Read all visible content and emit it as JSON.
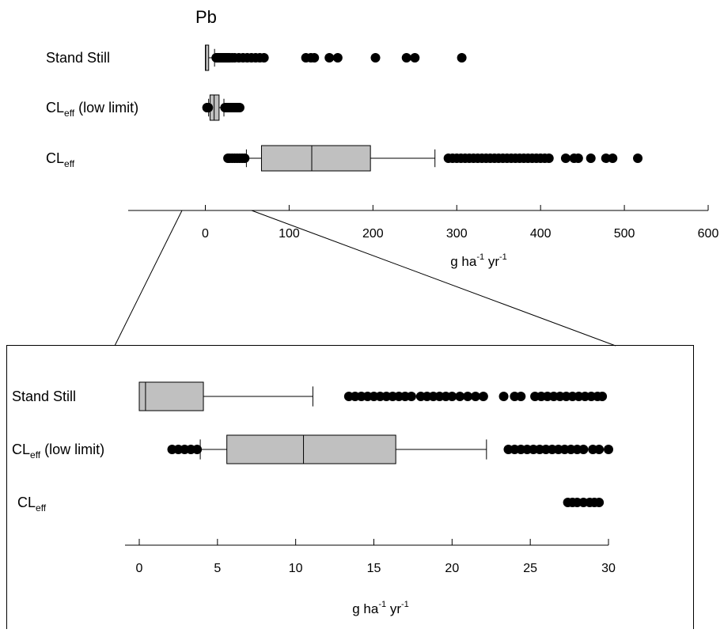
{
  "chart_data": [
    {
      "type": "boxplot",
      "title": "Pb",
      "xlabel": {
        "base": "g ha",
        "exp1": "-1",
        "mid": " yr",
        "exp2": "-1"
      },
      "xlim": [
        -90,
        600
      ],
      "xticks": [
        0,
        100,
        200,
        300,
        400,
        500,
        600
      ],
      "grid": false,
      "series": [
        {
          "label": {
            "base": "Stand Still",
            "sub": "",
            "suffix": ""
          },
          "box": {
            "q1": 0,
            "median": 0.4,
            "q3": 4,
            "whisker_low": 0,
            "whisker_high": 11
          },
          "outliers": [
            13,
            14,
            15,
            16,
            17,
            18,
            19,
            20,
            21,
            22,
            23,
            24,
            25,
            26,
            27,
            28,
            29,
            32,
            35,
            40,
            45,
            50,
            55,
            60,
            65,
            70,
            120,
            126,
            130,
            148,
            158,
            203,
            240,
            250,
            306
          ]
        },
        {
          "label": {
            "base": "CL",
            "sub": "eff",
            "suffix": " (low limit)"
          },
          "box": {
            "q1": 5.6,
            "median": 10.5,
            "q3": 16.4,
            "whisker_low": 3.9,
            "whisker_high": 22.2
          },
          "outliers": [
            2,
            2.5,
            3,
            3.5,
            23.5,
            25,
            27,
            29,
            31,
            33,
            35,
            37,
            39,
            41
          ]
        },
        {
          "label": {
            "base": "CL",
            "sub": "eff",
            "suffix": ""
          },
          "box": {
            "q1": 67,
            "median": 127,
            "q3": 197,
            "whisker_low": 49,
            "whisker_high": 274
          },
          "outliers": [
            27,
            29,
            32,
            35,
            38,
            41,
            44,
            47,
            290,
            295,
            300,
            305,
            310,
            315,
            320,
            325,
            330,
            335,
            340,
            345,
            350,
            355,
            360,
            365,
            370,
            375,
            380,
            385,
            390,
            395,
            400,
            405,
            410,
            430,
            440,
            445,
            460,
            478,
            486,
            516
          ]
        }
      ]
    },
    {
      "type": "boxplot",
      "title": "",
      "xlabel": {
        "base": "g ha",
        "exp1": "-1",
        "mid": " yr",
        "exp2": "-1"
      },
      "xlim": [
        -1,
        30
      ],
      "xticks": [
        0,
        5,
        10,
        15,
        20,
        25,
        30
      ],
      "grid": false,
      "series": [
        {
          "label": {
            "base": "Stand Still",
            "sub": "",
            "suffix": ""
          },
          "box": {
            "q1": 0,
            "median": 0.4,
            "q3": 4.1,
            "whisker_low": 0,
            "whisker_high": 11.1
          },
          "outliers": [
            13.4,
            13.8,
            14.2,
            14.6,
            15.0,
            15.4,
            15.8,
            16.2,
            16.6,
            17.0,
            17.4,
            18.0,
            18.4,
            18.8,
            19.2,
            19.6,
            20.0,
            20.5,
            21.0,
            21.5,
            22.0,
            23.3,
            24.0,
            24.4,
            25.3,
            25.7,
            26.1,
            26.5,
            26.9,
            27.3,
            27.7,
            28.1,
            28.5,
            28.9,
            29.3,
            29.6
          ]
        },
        {
          "label": {
            "base": "CL",
            "sub": "eff",
            "suffix": " (low limit)"
          },
          "box": {
            "q1": 5.6,
            "median": 10.5,
            "q3": 16.4,
            "whisker_low": 3.9,
            "whisker_high": 22.2
          },
          "outliers": [
            2.1,
            2.5,
            2.9,
            3.3,
            3.7,
            23.6,
            24.0,
            24.4,
            24.8,
            25.2,
            25.6,
            26.0,
            26.4,
            26.8,
            27.2,
            27.6,
            28.0,
            28.4,
            29.0,
            29.4,
            30.0
          ]
        },
        {
          "label": {
            "base": "CL",
            "sub": "eff",
            "suffix": ""
          },
          "box": null,
          "outliers": [
            27.4,
            27.7,
            28.0,
            28.4,
            28.8,
            29.1,
            29.4
          ]
        }
      ]
    }
  ]
}
